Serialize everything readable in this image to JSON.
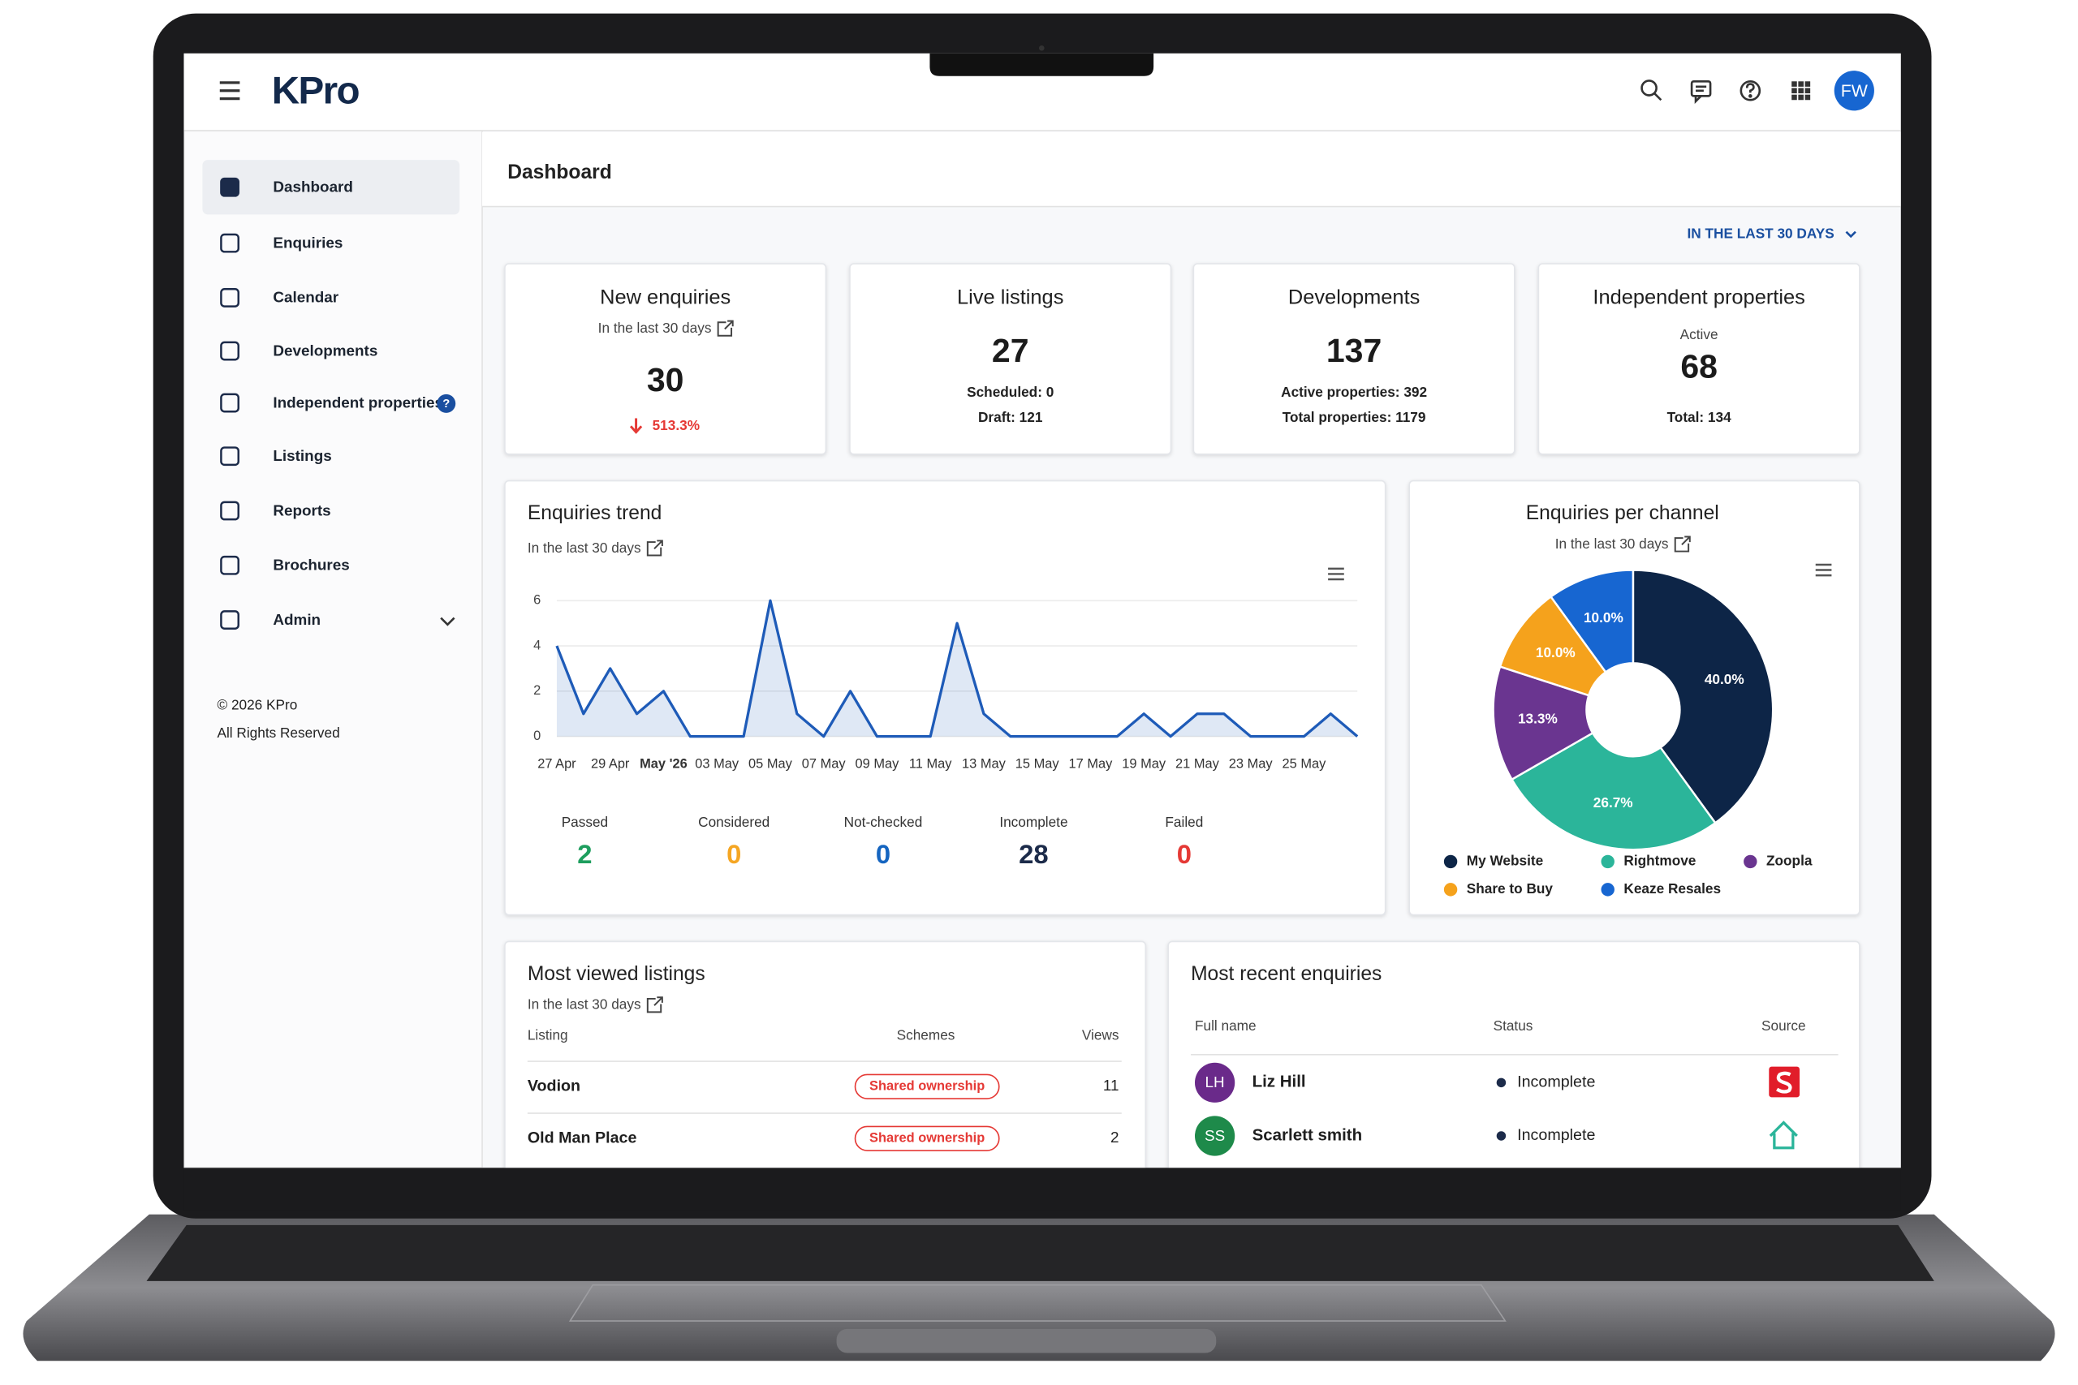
{
  "header": {
    "logo": "KPro",
    "avatar": "FW"
  },
  "sidebar": {
    "items": [
      "Dashboard",
      "Enquiries",
      "Calendar",
      "Developments",
      "Independent properties",
      "Listings",
      "Reports",
      "Brochures",
      "Admin"
    ],
    "badge": "?",
    "footer": [
      "© 2026 KPro",
      "All Rights Reserved"
    ]
  },
  "page_title": "Dashboard",
  "period": "IN THE LAST 30 DAYS",
  "stat_cards": [
    {
      "title": "New enquiries",
      "subtitle": "In the last 30 days",
      "value": 30,
      "change": "513.3%"
    },
    {
      "title": "Live listings",
      "value": 27,
      "details": [
        "Scheduled: 0",
        "Draft: 121"
      ]
    },
    {
      "title": "Developments",
      "value": 137,
      "details": [
        "Active properties: 392",
        "Total properties: 1179"
      ]
    },
    {
      "title": "Independent properties",
      "label": "Active",
      "value": 68,
      "details": [
        "Total: 134"
      ]
    }
  ],
  "chart_data": [
    {
      "type": "line",
      "title": "Enquiries trend",
      "subtitle": "In the last 30 days",
      "color": "#1e5bb8",
      "categories": [
        "27 Apr",
        null,
        "29 Apr",
        null,
        "May '26",
        null,
        "03 May",
        null,
        "05 May",
        null,
        "07 May",
        null,
        "09 May",
        null,
        "11 May",
        null,
        "13 May",
        null,
        "15 May",
        null,
        "17 May",
        null,
        "19 May",
        null,
        "21 May",
        null,
        "23 May",
        null,
        "25 May",
        null,
        null
      ],
      "values": [
        4,
        1,
        3,
        1,
        2,
        0,
        0,
        0,
        6,
        1,
        0,
        2,
        0,
        0,
        0,
        5,
        1,
        0,
        0,
        0,
        0,
        0,
        1,
        0,
        1,
        1,
        0,
        0,
        0,
        1,
        0
      ],
      "ylim": [
        0,
        6
      ],
      "yticks": [
        0,
        2,
        4,
        6
      ],
      "grid": true
    },
    {
      "type": "pie",
      "title": "Enquiries per channel",
      "subtitle": "In the last 30 days",
      "categories": [
        "My Website",
        "Rightmove",
        "Zoopla",
        "Share to Buy",
        "Keaze Resales"
      ],
      "values": [
        40,
        26.7,
        13.3,
        10,
        10
      ],
      "value_labels": [
        "40.0%",
        "26.7%",
        "13.3%",
        "10.0%",
        "10.0%"
      ],
      "colors": [
        "#0d2547",
        "#2bb59a",
        "#6a3590",
        "#f5a21c",
        "#1766d1"
      ]
    }
  ],
  "enquiry_statuses": [
    {
      "label": "Passed",
      "value": 2,
      "color": "#1e9e5e"
    },
    {
      "label": "Considered",
      "value": 0,
      "color": "#f5a623"
    },
    {
      "label": "Not-checked",
      "value": 0,
      "color": "#1565c0"
    },
    {
      "label": "Incomplete",
      "value": 28,
      "color": "#1c2b4a"
    },
    {
      "label": "Failed",
      "value": 0,
      "color": "#e53935"
    }
  ],
  "most_viewed_listings": {
    "title": "Most viewed listings",
    "subtitle": "In the last 30 days",
    "columns": [
      "Listing",
      "Schemes",
      "Views"
    ],
    "rows": [
      [
        "Vodion",
        "Shared ownership",
        11
      ],
      [
        "Old Man Place",
        "Shared ownership",
        2
      ]
    ]
  },
  "recent_enquiries": {
    "title": "Most recent enquiries",
    "columns": [
      "Full name",
      "Status",
      "Source"
    ],
    "rows": [
      {
        "initials": "LH",
        "name": "Liz Hill",
        "status": "Incomplete"
      },
      {
        "initials": "SS",
        "name": "Scarlett smith",
        "status": "Incomplete"
      }
    ]
  }
}
